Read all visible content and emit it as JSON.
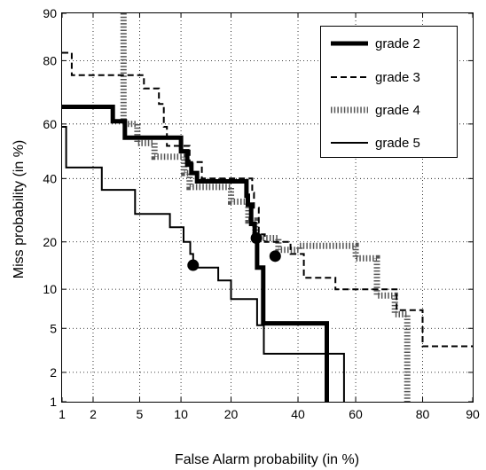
{
  "chart_data": {
    "type": "line",
    "title": "",
    "xlabel": "False Alarm probability (in %)",
    "ylabel": "Miss probability (in %)",
    "scale": "normal-deviate (probit) on both axes",
    "xlim": [
      1,
      90
    ],
    "ylim": [
      1,
      90
    ],
    "xticks": [
      1,
      2,
      5,
      10,
      20,
      40,
      60,
      80,
      90
    ],
    "yticks": [
      1,
      2,
      5,
      10,
      20,
      40,
      60,
      80,
      90
    ],
    "grid": true,
    "legend_position": "top-right",
    "series": [
      {
        "name": "grade 2",
        "style": "thick-solid",
        "points": [
          [
            1,
            66
          ],
          [
            3,
            66
          ],
          [
            3,
            61
          ],
          [
            3.8,
            61
          ],
          [
            3.8,
            55
          ],
          [
            10,
            55
          ],
          [
            10,
            50
          ],
          [
            11,
            50
          ],
          [
            11,
            45
          ],
          [
            11.7,
            45
          ],
          [
            11.7,
            42
          ],
          [
            12.7,
            42
          ],
          [
            12.7,
            39
          ],
          [
            24,
            39
          ],
          [
            24,
            34
          ],
          [
            24.4,
            34
          ],
          [
            24.4,
            31
          ],
          [
            25.3,
            31
          ],
          [
            25.3,
            25
          ],
          [
            26.3,
            25
          ],
          [
            26.3,
            21
          ],
          [
            27,
            21
          ],
          [
            27,
            14
          ],
          [
            28.8,
            14
          ],
          [
            28.8,
            5.5
          ],
          [
            50,
            5.5
          ],
          [
            50,
            1
          ]
        ],
        "marker": [
          26.8,
          21
        ]
      },
      {
        "name": "grade 3",
        "style": "dashed",
        "points": [
          [
            1,
            82
          ],
          [
            1.25,
            82
          ],
          [
            1.25,
            76
          ],
          [
            5.4,
            76
          ],
          [
            5.4,
            72
          ],
          [
            7,
            72
          ],
          [
            7,
            67
          ],
          [
            7.6,
            67
          ],
          [
            7.6,
            59
          ],
          [
            8,
            59
          ],
          [
            8,
            52
          ],
          [
            11.4,
            52
          ],
          [
            11.4,
            46
          ],
          [
            13.6,
            46
          ],
          [
            13.6,
            40
          ],
          [
            25.6,
            40
          ],
          [
            25.6,
            35
          ],
          [
            26.1,
            35
          ],
          [
            26.1,
            30
          ],
          [
            27.5,
            30
          ],
          [
            27.5,
            22
          ],
          [
            29.3,
            22
          ],
          [
            29.3,
            20
          ],
          [
            37.5,
            20
          ],
          [
            37.5,
            17
          ],
          [
            42,
            17
          ],
          [
            42,
            12
          ],
          [
            53,
            12
          ],
          [
            53,
            10
          ],
          [
            73,
            10
          ],
          [
            73,
            7
          ],
          [
            80,
            7
          ],
          [
            80,
            3.5
          ],
          [
            90,
            3.5
          ]
        ],
        "marker": null
      },
      {
        "name": "grade 4",
        "style": "dotted",
        "points": [
          [
            3.7,
            90
          ],
          [
            3.7,
            60
          ],
          [
            4.8,
            60
          ],
          [
            4.8,
            53
          ],
          [
            6.5,
            53
          ],
          [
            6.5,
            48
          ],
          [
            10.5,
            48
          ],
          [
            10.5,
            42
          ],
          [
            11.4,
            42
          ],
          [
            11.4,
            37
          ],
          [
            20,
            37
          ],
          [
            20,
            32
          ],
          [
            24.5,
            32
          ],
          [
            24.5,
            26
          ],
          [
            26.5,
            26
          ],
          [
            26.5,
            21
          ],
          [
            33.5,
            21
          ],
          [
            33.5,
            18
          ],
          [
            40.5,
            18
          ],
          [
            40.5,
            19
          ],
          [
            60,
            19
          ],
          [
            60,
            16
          ],
          [
            67,
            16
          ],
          [
            67,
            9
          ],
          [
            72.5,
            9
          ],
          [
            72.5,
            6.5
          ],
          [
            76,
            6.5
          ],
          [
            76,
            1
          ]
        ],
        "marker": [
          32.5,
          16.5
        ]
      },
      {
        "name": "grade 5",
        "style": "solid",
        "points": [
          [
            1,
            59
          ],
          [
            1.1,
            59
          ],
          [
            1.1,
            44
          ],
          [
            2.4,
            44
          ],
          [
            2.4,
            36
          ],
          [
            4.6,
            36
          ],
          [
            4.6,
            28
          ],
          [
            8.4,
            28
          ],
          [
            8.4,
            24
          ],
          [
            10.4,
            24
          ],
          [
            10.4,
            20
          ],
          [
            11.5,
            20
          ],
          [
            11.5,
            17
          ],
          [
            12,
            17
          ],
          [
            12,
            14
          ],
          [
            17,
            14
          ],
          [
            17,
            11.5
          ],
          [
            20,
            11.5
          ],
          [
            20,
            8.5
          ],
          [
            27,
            8.5
          ],
          [
            27,
            5.3
          ],
          [
            29,
            5.3
          ],
          [
            29,
            3
          ],
          [
            56,
            3
          ],
          [
            56,
            1
          ]
        ],
        "marker": [
          12,
          14.5
        ]
      }
    ]
  }
}
